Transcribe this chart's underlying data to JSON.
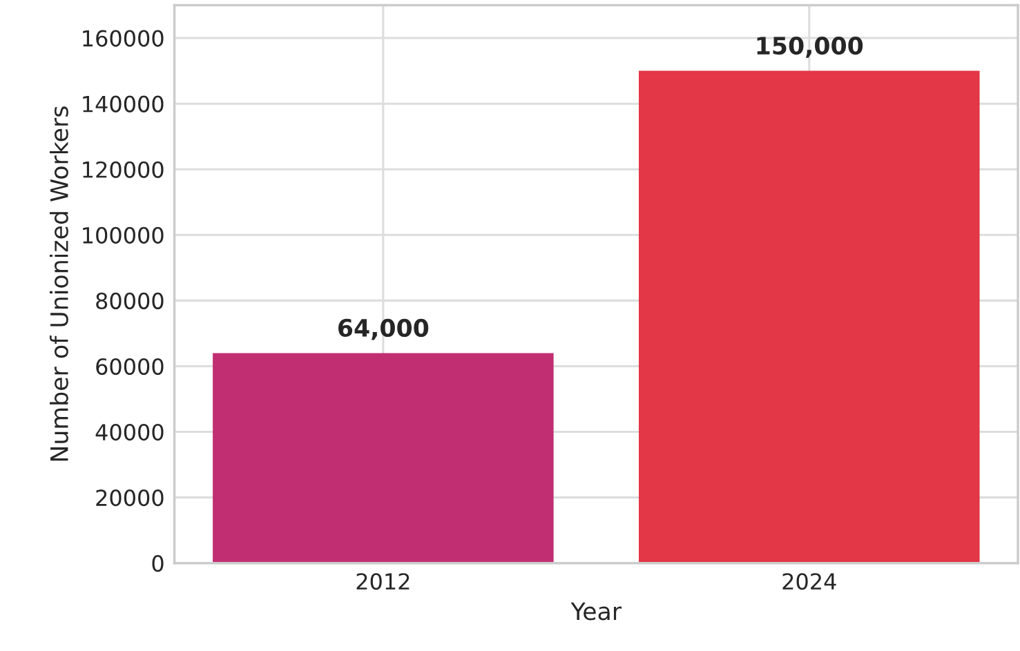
{
  "chart_data": {
    "type": "bar",
    "xlabel": "Year",
    "ylabel": "Number of Unionized Workers",
    "categories": [
      "2012",
      "2024"
    ],
    "values": [
      64000,
      150000
    ],
    "colors": [
      "#c22e72",
      "#e33646"
    ],
    "value_labels": [
      "64,000",
      "150,000"
    ],
    "ylim": [
      0,
      170000
    ],
    "yticks": [
      0,
      20000,
      40000,
      60000,
      80000,
      100000,
      120000,
      140000,
      160000
    ],
    "grid": true,
    "legend": false
  }
}
